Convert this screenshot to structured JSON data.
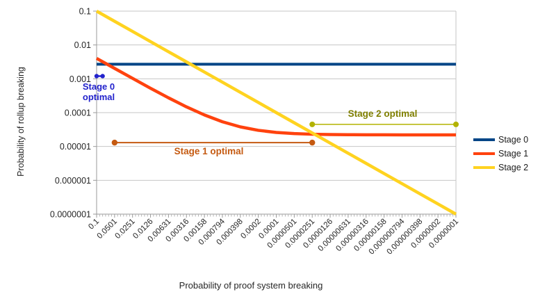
{
  "chart_data": {
    "type": "line",
    "xlabel": "Probability of proof system breaking",
    "ylabel": "Probability of rollup breaking",
    "x_scale": "log",
    "y_scale": "log",
    "grid": "horizontal",
    "legend_position": "right",
    "x_ticks": [
      "0.1",
      "0.0501",
      "0.0251",
      "0.0126",
      "0.00631",
      "0.00316",
      "0.00158",
      "0.000794",
      "0.000398",
      "0.0002",
      "0.0001",
      "0.0000501",
      "0.0000251",
      "0.0000126",
      "0.00000631",
      "0.00000316",
      "0.00000158",
      "0.000000794",
      "0.000000398",
      "0.0000002",
      "0.0000001"
    ],
    "y_ticks": [
      "0.1",
      "0.01",
      "0.001",
      "0.0001",
      "0.00001",
      "0.000001",
      "0.0000001"
    ],
    "x": [
      0.1,
      0.0501,
      0.0251,
      0.0126,
      0.00631,
      0.00316,
      0.00158,
      0.000794,
      0.000398,
      0.0002,
      0.0001,
      5.01e-05,
      2.51e-05,
      1.26e-05,
      6.31e-06,
      3.16e-06,
      1.58e-06,
      7.94e-07,
      3.98e-07,
      2e-07,
      1e-07
    ],
    "series": [
      {
        "name": "Stage 0",
        "color": "#004586",
        "values": [
          0.0027,
          0.0027,
          0.0027,
          0.0027,
          0.0027,
          0.0027,
          0.0027,
          0.0027,
          0.0027,
          0.0027,
          0.0027,
          0.0027,
          0.0027,
          0.0027,
          0.0027,
          0.0027,
          0.0027,
          0.0027,
          0.0027,
          0.0027,
          0.0027
        ]
      },
      {
        "name": "Stage 1",
        "color": "#ff420e",
        "values": [
          0.00402,
          0.00203,
          0.00103,
          0.000526,
          0.000274,
          0.000148,
          8.52e-05,
          5.38e-05,
          3.79e-05,
          3e-05,
          2.6e-05,
          2.4e-05,
          2.3e-05,
          2.25e-05,
          2.23e-05,
          2.21e-05,
          2.21e-05,
          2.2e-05,
          2.2e-05,
          2.2e-05,
          2.2e-05
        ]
      },
      {
        "name": "Stage 2",
        "color": "#ffd320",
        "values": [
          0.1,
          0.0501,
          0.0251,
          0.0126,
          0.00631,
          0.00316,
          0.00158,
          0.000794,
          0.000398,
          0.0002,
          0.0001,
          5.01e-05,
          2.51e-05,
          1.26e-05,
          6.31e-06,
          3.16e-06,
          1.58e-06,
          7.94e-07,
          3.98e-07,
          2e-07,
          1e-07
        ]
      }
    ],
    "annotations": [
      {
        "label": "Stage 0 optimal",
        "color": "#2222cc",
        "line_color": "#2222cc",
        "x_from": 0.1,
        "x_to": 0.0794,
        "y": 0.0012
      },
      {
        "label": "Stage 1 optimal",
        "color": "#c55a11",
        "line_color": "#c55a11",
        "x_from": 0.0501,
        "x_to": 2.51e-05,
        "y": 1.3e-05
      },
      {
        "label": "Stage 2 optimal",
        "color": "#7f7f00",
        "line_color": "#b2b200",
        "x_from": 2.51e-05,
        "x_to": 1e-07,
        "y": 4.5e-05
      }
    ]
  }
}
